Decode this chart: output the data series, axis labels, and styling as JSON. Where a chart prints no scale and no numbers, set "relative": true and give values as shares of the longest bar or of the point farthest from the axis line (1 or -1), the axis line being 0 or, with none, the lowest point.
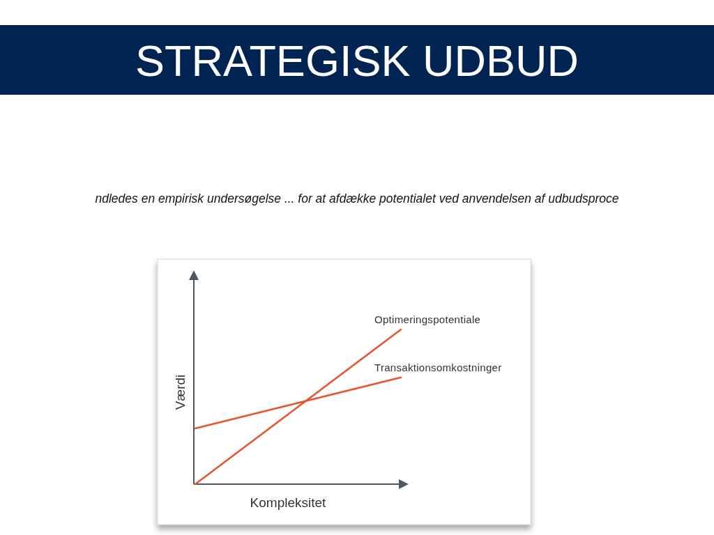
{
  "chart_data": {
    "type": "line",
    "title": "STRATEGISK UDBUD",
    "subtitle": "ndledes en empirisk undersøgelse ... for at afdække potentialet ved anvendelsen af udbudsproce",
    "xlabel": "Kompleksitet",
    "ylabel": "Værdi",
    "categories": [
      null,
      null
    ],
    "relative": true,
    "line_style": "solid",
    "series": [
      {
        "name": "Optimeringspotentiale",
        "color": "#e5562a",
        "values": [
          0,
          1
        ]
      },
      {
        "name": "Transaktionsomkostninger",
        "color": "#e5562a",
        "values": [
          0.36,
          0.69
        ]
      }
    ]
  }
}
